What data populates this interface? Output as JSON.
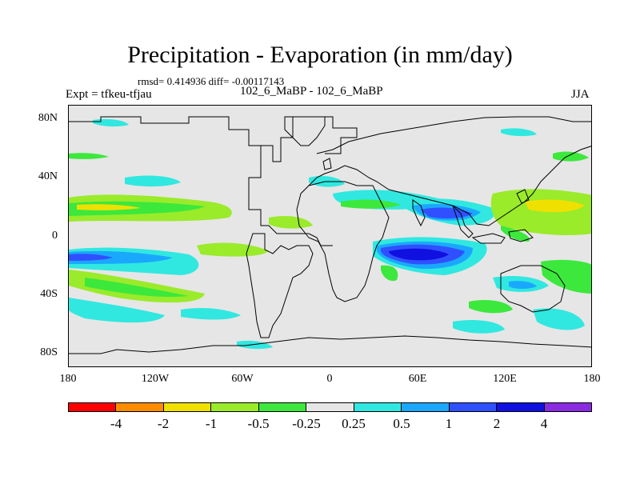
{
  "header": {
    "title": "Precipitation - Evaporation (in mm/day)",
    "stats": "rmsd= 0.414936 diff= -0.00117143",
    "left": "Expt = tfkeu-tfjau",
    "center": "102_6_MaBP - 102_6_MaBP",
    "right": "JJA"
  },
  "map": {
    "lat_labels": [
      "80N",
      "40N",
      "0",
      "40S",
      "80S"
    ],
    "lon_labels": [
      "180",
      "120W",
      "60W",
      "0",
      "60E",
      "120E",
      "180"
    ],
    "land_color": "#e6e6e6"
  },
  "colorbar": {
    "labels": [
      "-4",
      "-2",
      "-1",
      "-0.5",
      "-0.25",
      "0.25",
      "0.5",
      "1",
      "2",
      "4"
    ],
    "colors": [
      "#ff0000",
      "#ff8c00",
      "#f0e000",
      "#9aeb2a",
      "#3ce83c",
      "#e6e6e6",
      "#30e8e0",
      "#1aa8ff",
      "#3050ff",
      "#1010e0",
      "#8a2be2"
    ]
  }
}
